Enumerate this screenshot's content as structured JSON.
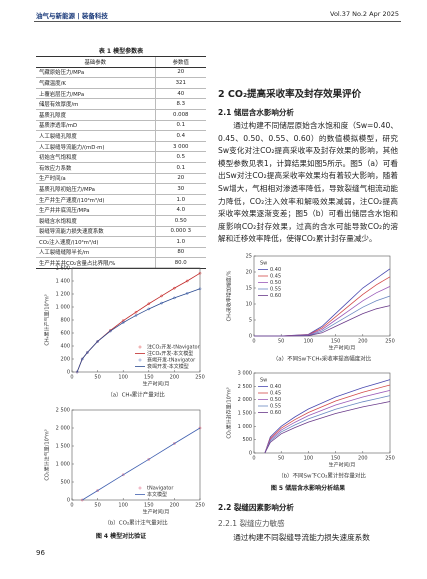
{
  "header": {
    "left": "油气与新能源 | 装备科技",
    "right": "Vol.37 No.2 Apr 2025"
  },
  "table": {
    "caption": "表 1 模型参数表",
    "columns": [
      "基础参数",
      "参数值"
    ],
    "rows": [
      [
        "气藏原始压力/MPa",
        "20"
      ],
      [
        "气藏温度/K",
        "321"
      ],
      [
        "上覆岩层压力/MPa",
        "40"
      ],
      [
        "储层有效厚度/m",
        "8.3"
      ],
      [
        "基质孔隙度",
        "0.008"
      ],
      [
        "基质渗透率/mD",
        "0.1"
      ],
      [
        "人工裂缝孔隙度",
        "0.4"
      ],
      [
        "人工裂缝导流能力/(mD·m)",
        "3 000"
      ],
      [
        "初始含气饱和度",
        "0.5"
      ],
      [
        "有效应力系数",
        "0.1"
      ],
      [
        "生产时间/a",
        "20"
      ],
      [
        "基质孔隙初始压力/MPa",
        "30"
      ],
      [
        "生产井生产速度/(10⁴m³/d)",
        "1.0"
      ],
      [
        "生产井井底流压/MPa",
        "4.0"
      ],
      [
        "裂缝含水饱和度",
        "0.50"
      ],
      [
        "裂缝导流能力损失速度系数",
        "0.000 3"
      ],
      [
        "CO₂注入速度/(10⁴m³/d)",
        "1.0"
      ],
      [
        "人工裂缝缝隙半长/m",
        "80"
      ],
      [
        "生产井关井CO₂含量占比界限/%",
        "80.0"
      ]
    ]
  },
  "figure4": {
    "caption": "图 4 模型对比验证"
  },
  "figure5": {
    "caption": "图 5 储层含水影响分析结果"
  },
  "section2": {
    "heading": "2  CO₂提高采收率及封存效果评价",
    "sub1": "2.1  储层含水影响分析",
    "para1": "通过构建不同储层原始含水饱和度（Sw=0.40、0.45、0.50、0.55、0.60）的数值模拟模型，研究Sw变化对注CO₂提高采收率及封存效果的影响，其他模型参数见表1，计算结果如图5所示。图5（a）可看出Sw对注CO₂提高采收率效果均有着较大影响，随着Sw增大，气相相对渗透率降低，导致裂缝气相流动能力降低，CO₂注入效率和解吸效果减弱，注CO₂提高采收率效果逐渐变差；图5（b）可看出储层含水饱和度影响CO₂封存效果，过高的含水可能导致CO₂的溶解和迁移效率降低，使得CO₂累计封存量减少。",
    "sub2": "2.2  裂缝因素影响分析",
    "sub2_1": "2.2.1  裂缝应力敏感",
    "para2": "通过构建不同裂缝导流能力损失速度系数"
  },
  "page_number": "96",
  "chart_data": [
    {
      "type": "line",
      "caption": "（a）CH₄累计产量对比",
      "xlabel": "生产时间/月",
      "ylabel": "CH₄累计产气量/10⁴m³",
      "x": [
        10,
        20,
        30,
        50,
        75,
        100,
        125,
        150,
        175,
        200,
        225,
        250
      ],
      "xlim": [
        0,
        250
      ],
      "xticks": [
        0,
        50,
        100,
        150,
        200,
        250
      ],
      "ylim": [
        0,
        1600
      ],
      "yticks": [
        0,
        200,
        400,
        600,
        800,
        {
          "value": 1000,
          "label": "1 000"
        },
        {
          "value": 1200,
          "label": "1 200"
        },
        {
          "value": 1400,
          "label": "1 400"
        },
        {
          "value": 1600,
          "label": "1 600"
        }
      ],
      "legend": "lower right",
      "series": [
        {
          "name": "注CO₂开发-tNavigator",
          "color": "#e05050",
          "marker": true,
          "values": [
            0,
            200,
            300,
            470,
            640,
            790,
            920,
            1050,
            1170,
            1290,
            1400,
            1520
          ]
        },
        {
          "name": "注CO₂开发-本文模型",
          "color": "#c02828",
          "marker": false,
          "values": [
            0,
            200,
            300,
            470,
            640,
            790,
            920,
            1050,
            1170,
            1290,
            1400,
            1520
          ]
        },
        {
          "name": "衰竭开发-tNavigator",
          "color": "#6080c8",
          "marker": true,
          "values": [
            0,
            200,
            300,
            470,
            630,
            760,
            870,
            970,
            1060,
            1140,
            1210,
            1280
          ]
        },
        {
          "name": "衰竭开发-本文模型",
          "color": "#2a4a90",
          "marker": false,
          "values": [
            0,
            200,
            300,
            470,
            630,
            760,
            870,
            970,
            1060,
            1140,
            1210,
            1280
          ]
        }
      ]
    },
    {
      "type": "line",
      "caption": "（b）CO₂累计注气量对比",
      "xlabel": "生产时间/月",
      "ylabel": "CO₂累计注气量/10⁴m³",
      "x": [
        20,
        50,
        100,
        150,
        200,
        250
      ],
      "xlim": [
        0,
        250
      ],
      "xticks": [
        0,
        50,
        100,
        150,
        200,
        250
      ],
      "ylim": [
        0,
        2500
      ],
      "yticks": [
        0,
        500,
        {
          "value": 1000,
          "label": "1 000"
        },
        {
          "value": 1500,
          "label": "1 500"
        },
        {
          "value": 2000,
          "label": "2 000"
        },
        {
          "value": 2500,
          "label": "2 500"
        }
      ],
      "legend": "lower right",
      "series": [
        {
          "name": "tNavigator",
          "color": "#e06080",
          "marker": true,
          "values": [
            0,
            260,
            700,
            1130,
            1570,
            2000
          ]
        },
        {
          "name": "本文模型",
          "color": "#4060b0",
          "marker": false,
          "values": [
            0,
            260,
            700,
            1130,
            1570,
            2000
          ]
        }
      ]
    },
    {
      "type": "line",
      "caption": "（a）不同Sw下CH₄采收率提高幅度对比",
      "xlabel": "生产时间/月",
      "ylabel": "CH₄采收率增加幅度/%",
      "x": [
        0,
        50,
        100,
        125,
        150,
        175,
        200,
        225,
        250
      ],
      "xlim": [
        0,
        250
      ],
      "xticks": [
        0,
        50,
        100,
        150,
        200,
        250
      ],
      "ylim": [
        0,
        25
      ],
      "yticks": [
        0,
        5,
        10,
        15,
        20,
        25
      ],
      "legend": "upper left",
      "legend_title": "Sw",
      "series": [
        {
          "name": "0.40",
          "color": "#4a4ab0",
          "marker": false,
          "values": [
            0,
            0,
            0.5,
            3,
            7,
            11,
            15,
            18,
            21
          ]
        },
        {
          "name": "0.45",
          "color": "#d24a4a",
          "marker": false,
          "values": [
            0,
            0,
            0.4,
            2.5,
            6,
            9.5,
            13,
            16,
            18.5
          ]
        },
        {
          "name": "0.50",
          "color": "#9a5ab8",
          "marker": false,
          "values": [
            0,
            0,
            0.3,
            2,
            5,
            8,
            11,
            13.5,
            15.5
          ]
        },
        {
          "name": "0.55",
          "color": "#6a88c0",
          "marker": false,
          "values": [
            0,
            0,
            0.2,
            1.5,
            4,
            6.5,
            9,
            11,
            12.5
          ]
        },
        {
          "name": "0.60",
          "color": "#6a3a8a",
          "marker": false,
          "values": [
            0,
            0,
            0.1,
            1,
            3,
            5,
            7,
            8.5,
            9.5
          ]
        }
      ]
    },
    {
      "type": "line",
      "caption": "（b）不同Sw下CO₂累计封存量对比",
      "xlabel": "生产时间/月",
      "ylabel": "CO₂累计封存量/10⁴m³",
      "x": [
        20,
        30,
        50,
        75,
        100,
        150,
        200,
        250
      ],
      "xlim": [
        0,
        250
      ],
      "xticks": [
        0,
        50,
        100,
        150,
        200,
        250
      ],
      "ylim": [
        0,
        3000
      ],
      "yticks": [
        0,
        500,
        {
          "value": 1000,
          "label": "1 000"
        },
        {
          "value": 1500,
          "label": "1 500"
        },
        {
          "value": 2000,
          "label": "2 000"
        },
        {
          "value": 2500,
          "label": "2 500"
        },
        {
          "value": 3000,
          "label": "3 000"
        }
      ],
      "legend": "upper left",
      "legend_title": "Sw",
      "series": [
        {
          "name": "0.40",
          "color": "#4a4ab0",
          "marker": false,
          "values": [
            0,
            600,
            1000,
            1350,
            1650,
            2100,
            2450,
            2750
          ]
        },
        {
          "name": "0.45",
          "color": "#d24a4a",
          "marker": false,
          "values": [
            0,
            550,
            930,
            1250,
            1520,
            1950,
            2280,
            2550
          ]
        },
        {
          "name": "0.50",
          "color": "#9a5ab8",
          "marker": false,
          "values": [
            0,
            500,
            860,
            1150,
            1400,
            1800,
            2100,
            2350
          ]
        },
        {
          "name": "0.55",
          "color": "#6a88c0",
          "marker": false,
          "values": [
            0,
            450,
            790,
            1050,
            1280,
            1640,
            1920,
            2150
          ]
        },
        {
          "name": "0.60",
          "color": "#6a3a8a",
          "marker": false,
          "values": [
            0,
            400,
            720,
            950,
            1160,
            1480,
            1730,
            1930
          ]
        }
      ]
    }
  ]
}
